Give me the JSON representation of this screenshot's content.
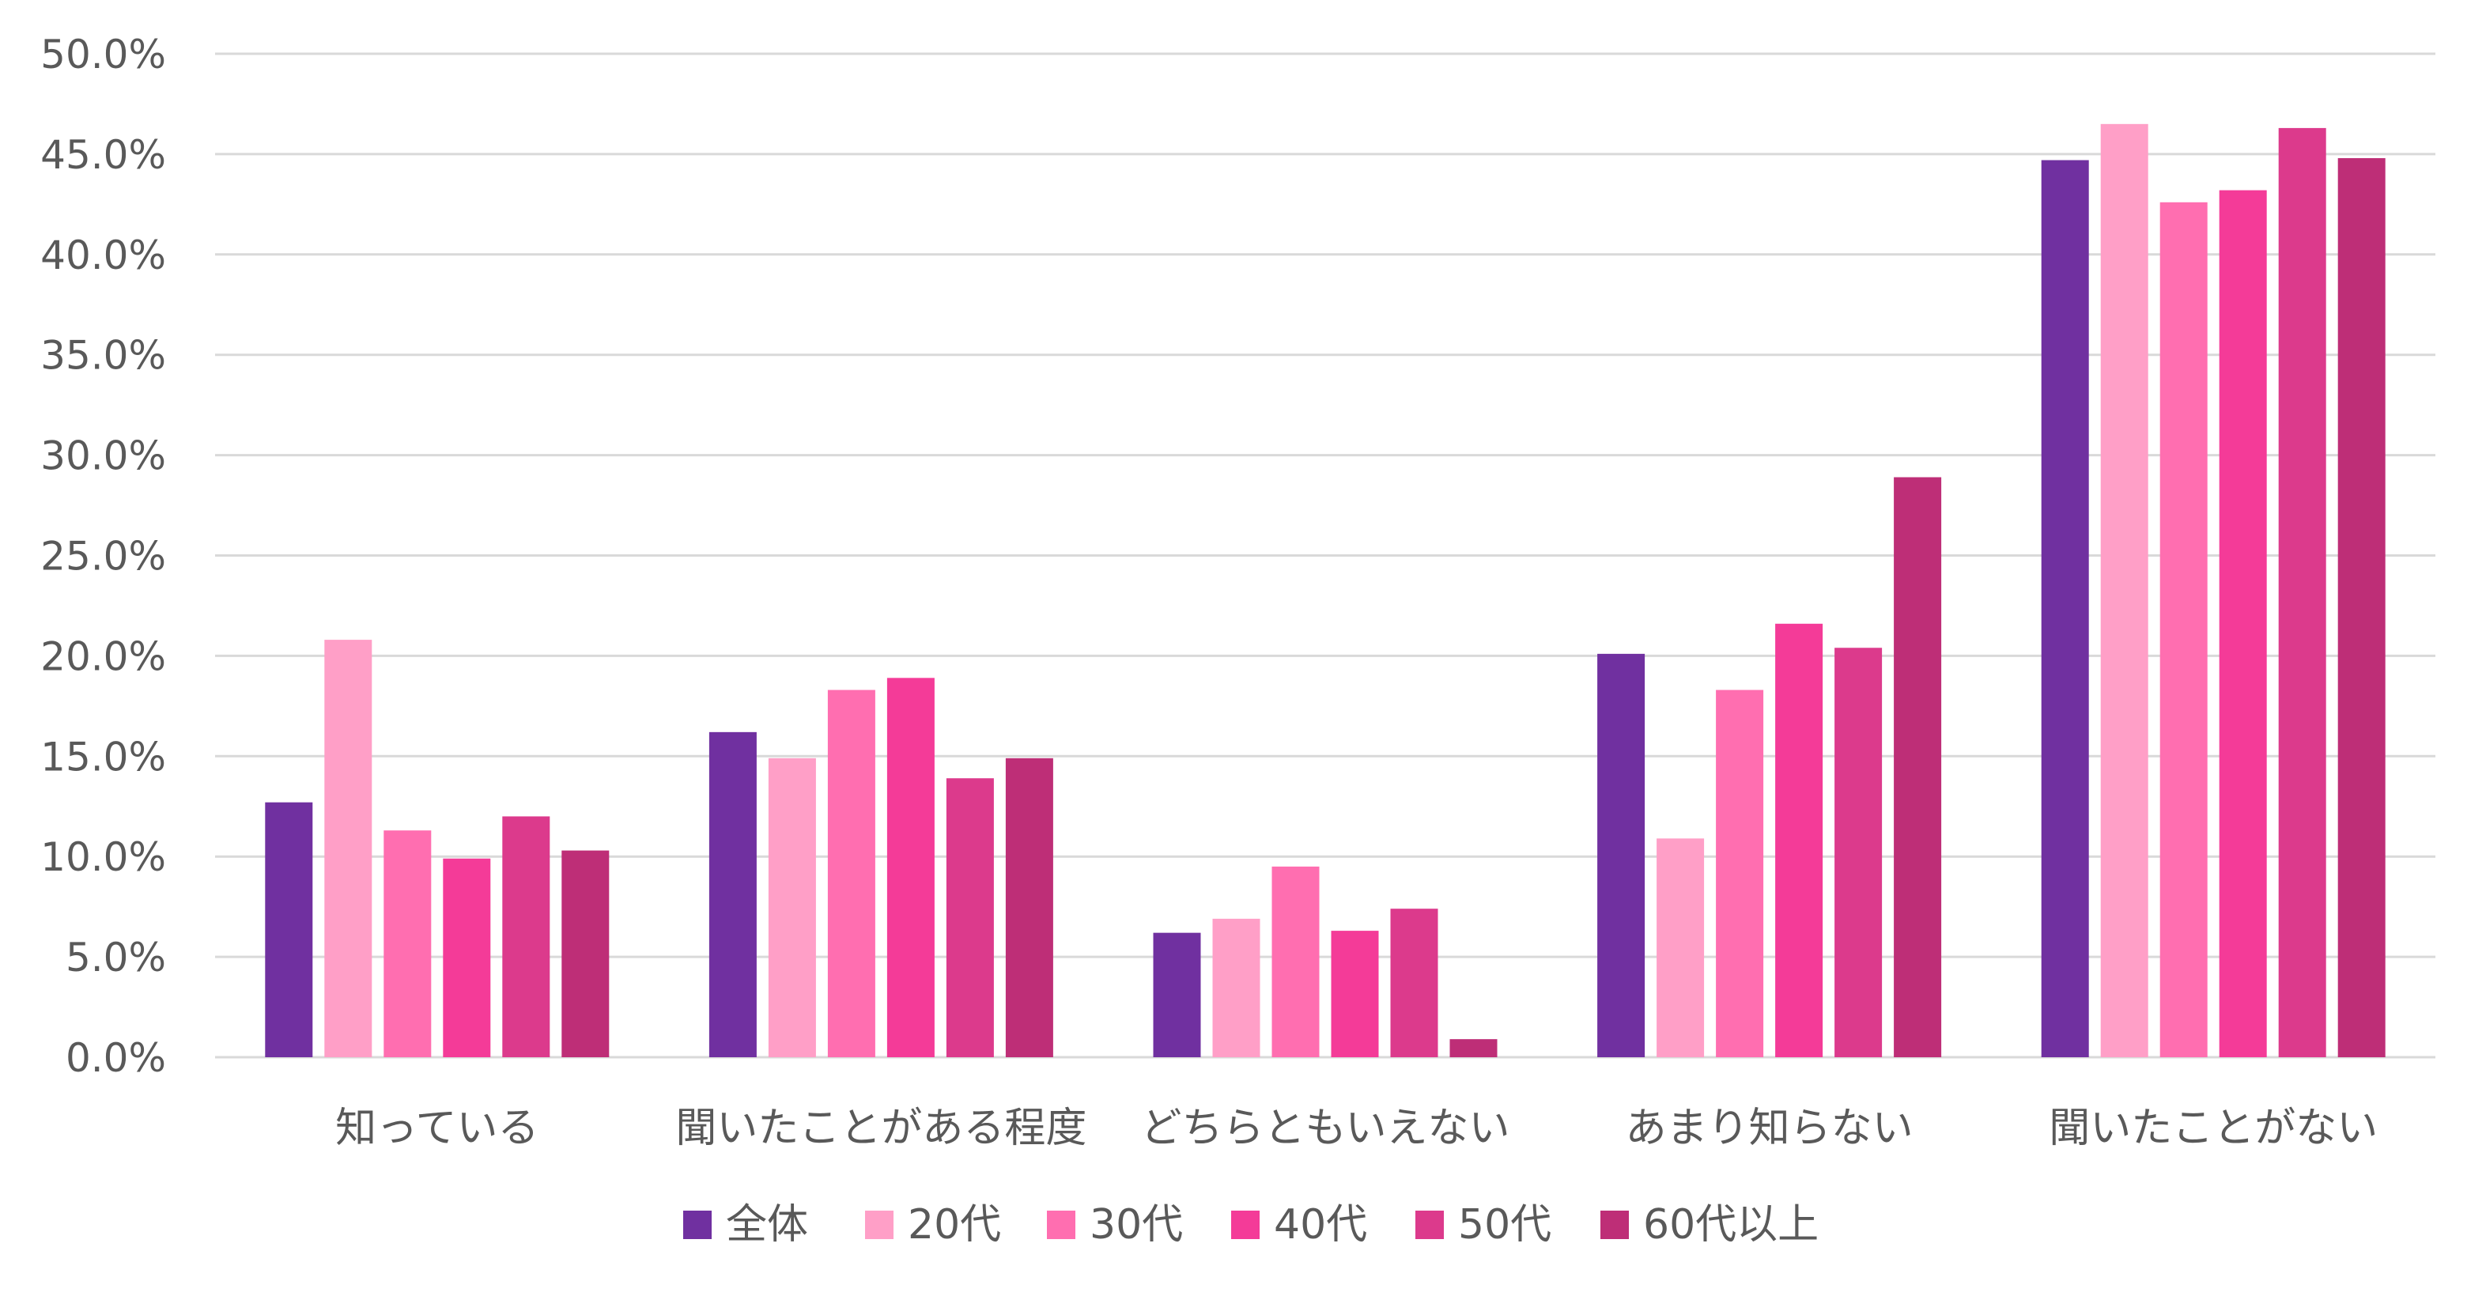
{
  "chart_data": {
    "type": "bar",
    "title": "",
    "xlabel": "",
    "ylabel": "",
    "ylim": [
      0,
      50
    ],
    "y_ticks": [
      "0.0%",
      "5.0%",
      "10.0%",
      "15.0%",
      "20.0%",
      "25.0%",
      "30.0%",
      "35.0%",
      "40.0%",
      "45.0%",
      "50.0%"
    ],
    "y_tick_values": [
      0,
      5,
      10,
      15,
      20,
      25,
      30,
      35,
      40,
      45,
      50
    ],
    "grid": true,
    "legend_position": "bottom",
    "categories": [
      "知っている",
      "聞いたことがある程度",
      "どちらともいえない",
      "あまり知らない",
      "聞いたことがない"
    ],
    "series": [
      {
        "name": "全体",
        "color": "#7030A0",
        "values": [
          12.7,
          16.2,
          6.2,
          20.1,
          44.7
        ]
      },
      {
        "name": "20代",
        "color": "#FF9FC7",
        "values": [
          20.8,
          14.9,
          6.9,
          10.9,
          46.5
        ]
      },
      {
        "name": "30代",
        "color": "#FF6EB0",
        "values": [
          11.3,
          18.3,
          9.5,
          18.3,
          42.6
        ]
      },
      {
        "name": "40代",
        "color": "#F43B98",
        "values": [
          9.9,
          18.9,
          6.3,
          21.6,
          43.2
        ]
      },
      {
        "name": "50代",
        "color": "#DC3A8C",
        "values": [
          12.0,
          13.9,
          7.4,
          20.4,
          46.3
        ]
      },
      {
        "name": "60代以上",
        "color": "#BE2E77",
        "values": [
          10.3,
          14.9,
          0.9,
          28.9,
          44.8
        ]
      }
    ]
  }
}
